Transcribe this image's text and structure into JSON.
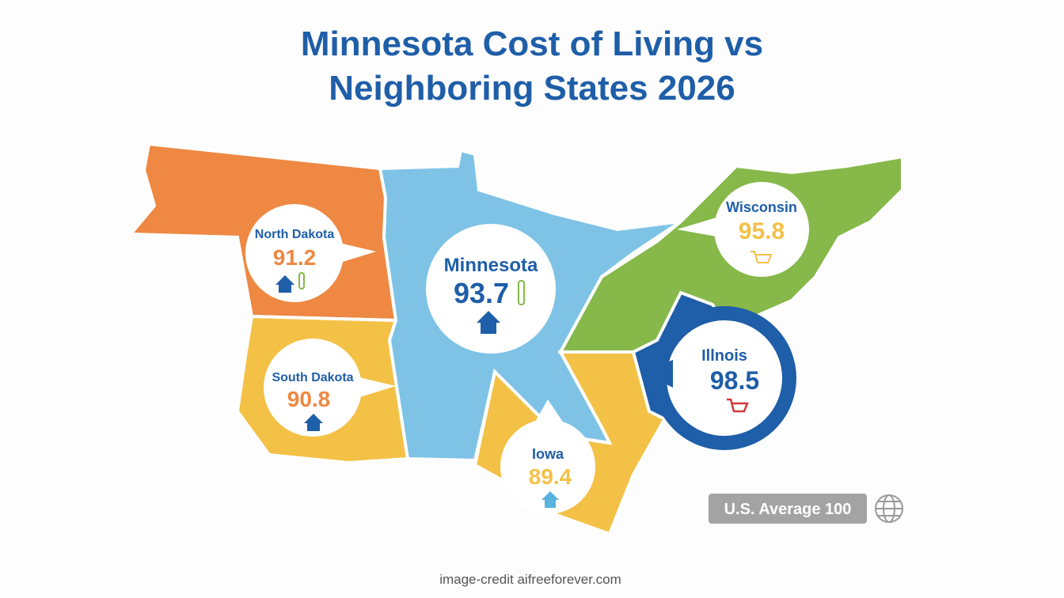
{
  "title": "Minnesota Cost of Living vs Neighboring States 2026",
  "states": [
    {
      "name": "North Dakota",
      "index": 91.2
    },
    {
      "name": "Minnesota",
      "index": 93.7
    },
    {
      "name": "Wisconsin",
      "index": 95.8
    },
    {
      "name": "South Dakota",
      "index": 90.8
    },
    {
      "name": "Illnois",
      "index": 98.5
    },
    {
      "name": "Iowa",
      "index": 89.4
    }
  ],
  "badge": "U.S. Average 100",
  "credit": "image-credit aifreeforever.com"
}
